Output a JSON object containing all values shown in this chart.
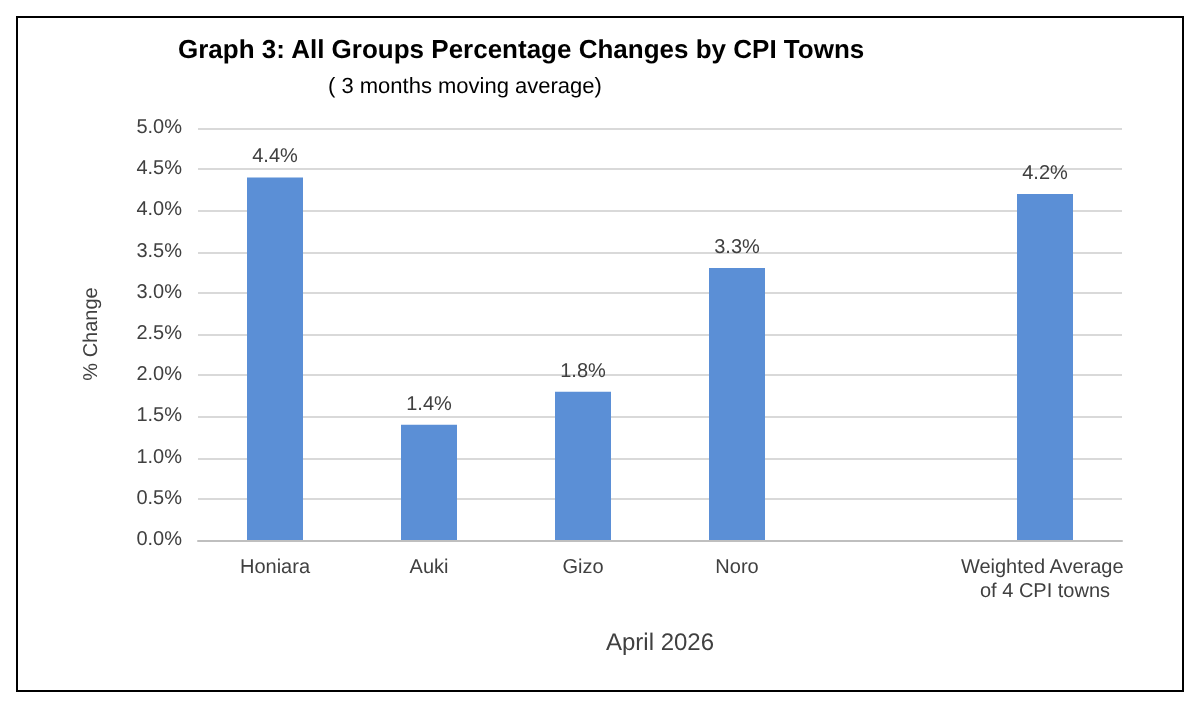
{
  "chart_data": {
    "type": "bar",
    "title": "Graph 3: All Groups Percentage Changes by CPI Towns",
    "subtitle": "( 3 months moving average)",
    "xlabel": "April 2026",
    "ylabel": "% Change",
    "categories": [
      "Honiara",
      "Auki",
      "Gizo",
      "Noro",
      null,
      "Weighted Average of 4 CPI towns"
    ],
    "values": [
      4.4,
      1.4,
      1.8,
      3.3,
      null,
      4.2
    ],
    "value_labels": [
      "4.4%",
      "1.4%",
      "1.8%",
      "3.3%",
      null,
      "4.2%"
    ],
    "color": "#5b8fd6",
    "ylim": [
      0,
      5
    ],
    "yticks": [
      {
        "value": 0,
        "label": "0.0%"
      },
      {
        "value": 0.5,
        "label": "0.5%"
      },
      {
        "value": 1,
        "label": "1.0%"
      },
      {
        "value": 1.5,
        "label": "1.5%"
      },
      {
        "value": 2,
        "label": "2.0%"
      },
      {
        "value": 2.5,
        "label": "2.5%"
      },
      {
        "value": 3,
        "label": "3.0%"
      },
      {
        "value": 3.5,
        "label": "3.5%"
      },
      {
        "value": 4,
        "label": "4.0%"
      },
      {
        "value": 4.5,
        "label": "4.5%"
      },
      {
        "value": 5,
        "label": "5.0%"
      }
    ],
    "grid": "y"
  }
}
